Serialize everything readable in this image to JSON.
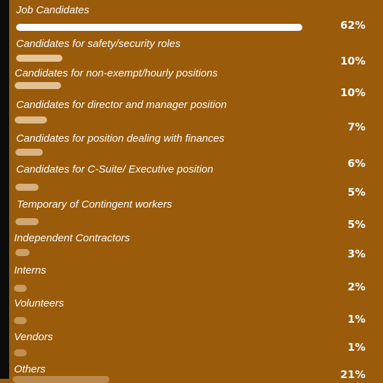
{
  "colors": {
    "background": "#9a5b0b",
    "bar_top": "#ffffff"
  },
  "chart_data": {
    "type": "bar",
    "orientation": "horizontal",
    "categories": [
      "Job Candidates",
      "Candidates for safety/security roles",
      "Candidates for non-exempt/hourly positions",
      "Candidates for director and manager position",
      "Candidates for position dealing with finances",
      "Candidates for C-Suite/ Executive position",
      "Temporary of Contingent workers",
      "Independent Contractors",
      "Interns",
      "Volunteers",
      "Vendors",
      "Others"
    ],
    "values": [
      62,
      10,
      10,
      7,
      6,
      5,
      5,
      3,
      2,
      1,
      1,
      21
    ],
    "value_labels": [
      "62%",
      "10%",
      "10%",
      "7%",
      "6%",
      "5%",
      "5%",
      "3%",
      "2%",
      "1%",
      "1%",
      "21%"
    ],
    "xlim": [
      0,
      62
    ],
    "title": "",
    "xlabel": "",
    "ylabel": "",
    "grid": false,
    "legend": "none"
  }
}
